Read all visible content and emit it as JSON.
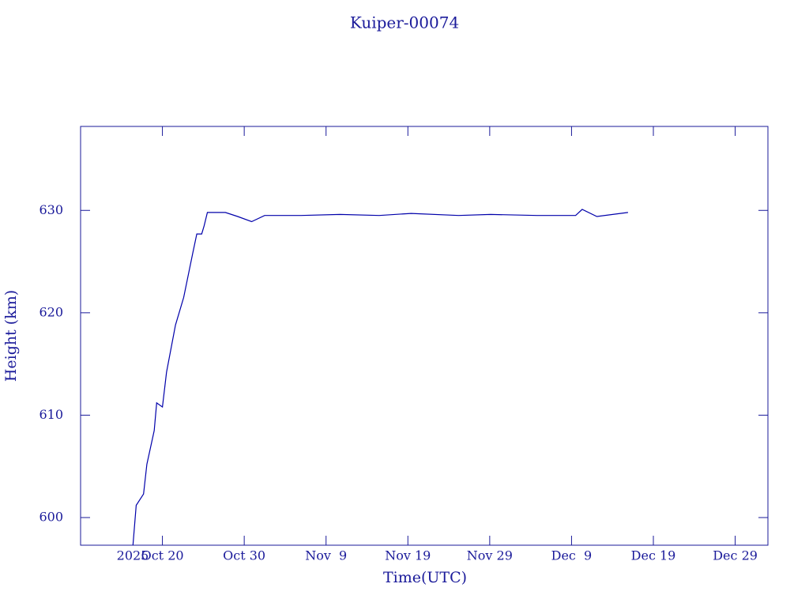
{
  "chart_data": {
    "type": "line",
    "title": "Kuiper-00074",
    "x_label": "Time(UTC)",
    "y_label": "Height (km)",
    "year_label": "2025",
    "x": [
      289.4,
      289.8,
      290.7,
      291.1,
      292.0,
      292.3,
      293.0,
      293.5,
      294.6,
      295.6,
      296.7,
      297.2,
      297.8,
      298.1,
      298.5,
      300.7,
      302.2,
      303.9,
      305.5,
      309.9,
      314.7,
      319.5,
      323.4,
      329.2,
      333.1,
      338.8,
      343.5,
      344.3,
      346.1,
      349.9
    ],
    "series": [
      {
        "name": "Kuiper-00074",
        "color": "#0000aa",
        "values": [
          597.3,
          601.2,
          602.3,
          605.2,
          608.5,
          611.2,
          610.8,
          614.2,
          618.8,
          621.5,
          625.8,
          627.7,
          627.7,
          628.5,
          629.8,
          629.8,
          629.4,
          628.9,
          629.5,
          629.5,
          629.6,
          629.5,
          629.7,
          629.5,
          629.6,
          629.5,
          629.5,
          630.1,
          629.4,
          629.8
        ]
      }
    ],
    "xlim": [
      283,
      367
    ],
    "xticks": [
      {
        "value": 293,
        "label": "Oct 20"
      },
      {
        "value": 303,
        "label": "Oct 30"
      },
      {
        "value": 313,
        "label": "Nov  9"
      },
      {
        "value": 323,
        "label": "Nov 19"
      },
      {
        "value": 333,
        "label": "Nov 29"
      },
      {
        "value": 343,
        "label": "Dec  9"
      },
      {
        "value": 353,
        "label": "Dec 19"
      },
      {
        "value": 363,
        "label": "Dec 29"
      }
    ],
    "ylim": [
      597.3,
      638.2
    ],
    "yticks": [
      600,
      610,
      620,
      630
    ]
  }
}
